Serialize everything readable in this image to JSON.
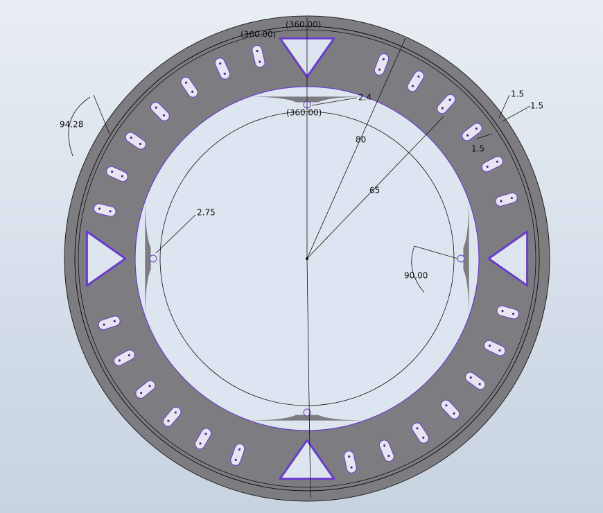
{
  "labels": [
    "(360.00)",
    "(360.00)",
    "(360.00)",
    "2.4",
    "1.5",
    "1.5",
    "1.5",
    "94.28",
    "80",
    "65",
    "2.75",
    "90.00"
  ]
}
